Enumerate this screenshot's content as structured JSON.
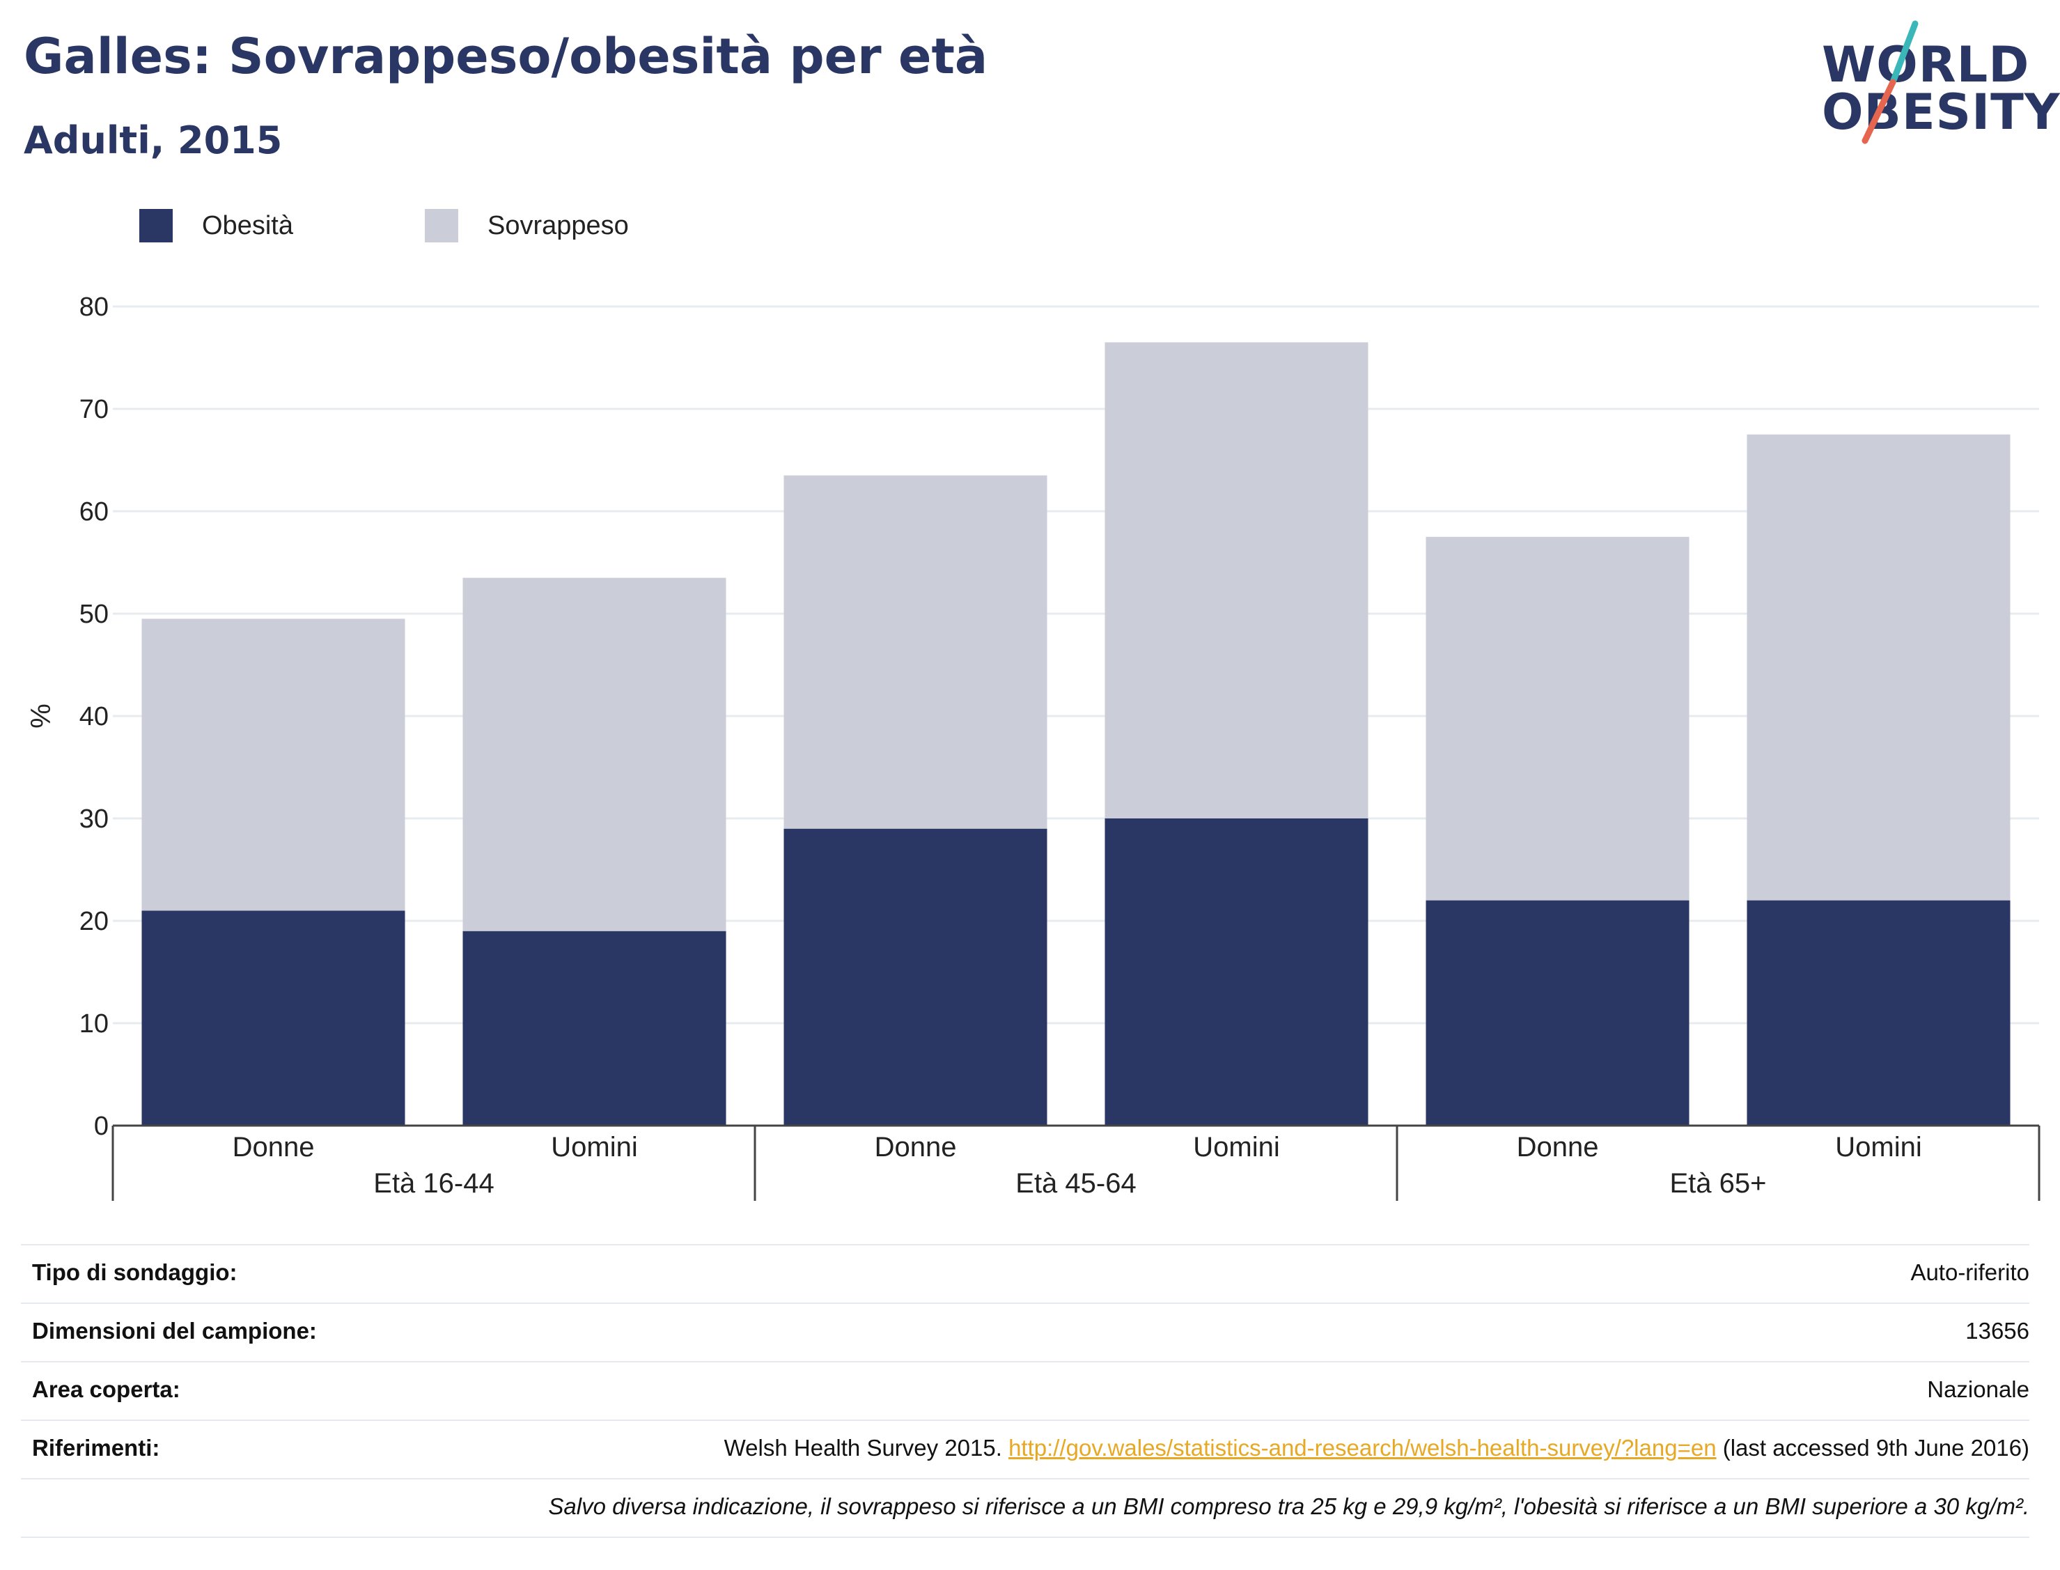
{
  "header": {
    "title": "Galles: Sovrappeso/obesità per età",
    "subtitle": "Adulti, 2015"
  },
  "logo": {
    "line1": "WORLD",
    "line2": "OBESITY",
    "accent_colors": [
      "#3ab7b8",
      "#e5654f"
    ]
  },
  "legend": [
    {
      "label": "Obesità",
      "color": "#2a3664"
    },
    {
      "label": "Sovrappeso",
      "color": "#cbcdd9"
    }
  ],
  "chart_data": {
    "type": "bar",
    "stacked": true,
    "ylabel": "%",
    "ylim": [
      0,
      80
    ],
    "yticks": [
      0,
      10,
      20,
      30,
      40,
      50,
      60,
      70,
      80
    ],
    "groups": [
      "Età 16-44",
      "Età 45-64",
      "Età 65+"
    ],
    "categories": [
      "Donne",
      "Uomini",
      "Donne",
      "Uomini",
      "Donne",
      "Uomini"
    ],
    "series": [
      {
        "name": "Obesità",
        "color": "#2a3664",
        "values": [
          21,
          19,
          29,
          30,
          22,
          22
        ]
      },
      {
        "name": "Sovrappeso",
        "color": "#cbcdd9",
        "values": [
          28.5,
          34.5,
          34.5,
          46.5,
          35.5,
          45.5
        ]
      }
    ],
    "grid": true,
    "legend_position": "top-left"
  },
  "info": {
    "survey_type_label": "Tipo di sondaggio:",
    "survey_type_value": "Auto-riferito",
    "sample_size_label": "Dimensioni del campione:",
    "sample_size_value": "13656",
    "area_label": "Area coperta:",
    "area_value": "Nazionale",
    "references_label": "Riferimenti:",
    "references_text": "Welsh Health Survey 2015.",
    "references_link": "http://gov.wales/statistics-and-research/welsh-health-survey/?lang=en",
    "references_suffix": "(last accessed 9th June 2016)",
    "note": "Salvo diversa indicazione, il sovrappeso si riferisce a un BMI compreso tra 25 kg e 29,9 kg/m², l'obesità si riferisce a un BMI superiore a 30 kg/m²."
  }
}
